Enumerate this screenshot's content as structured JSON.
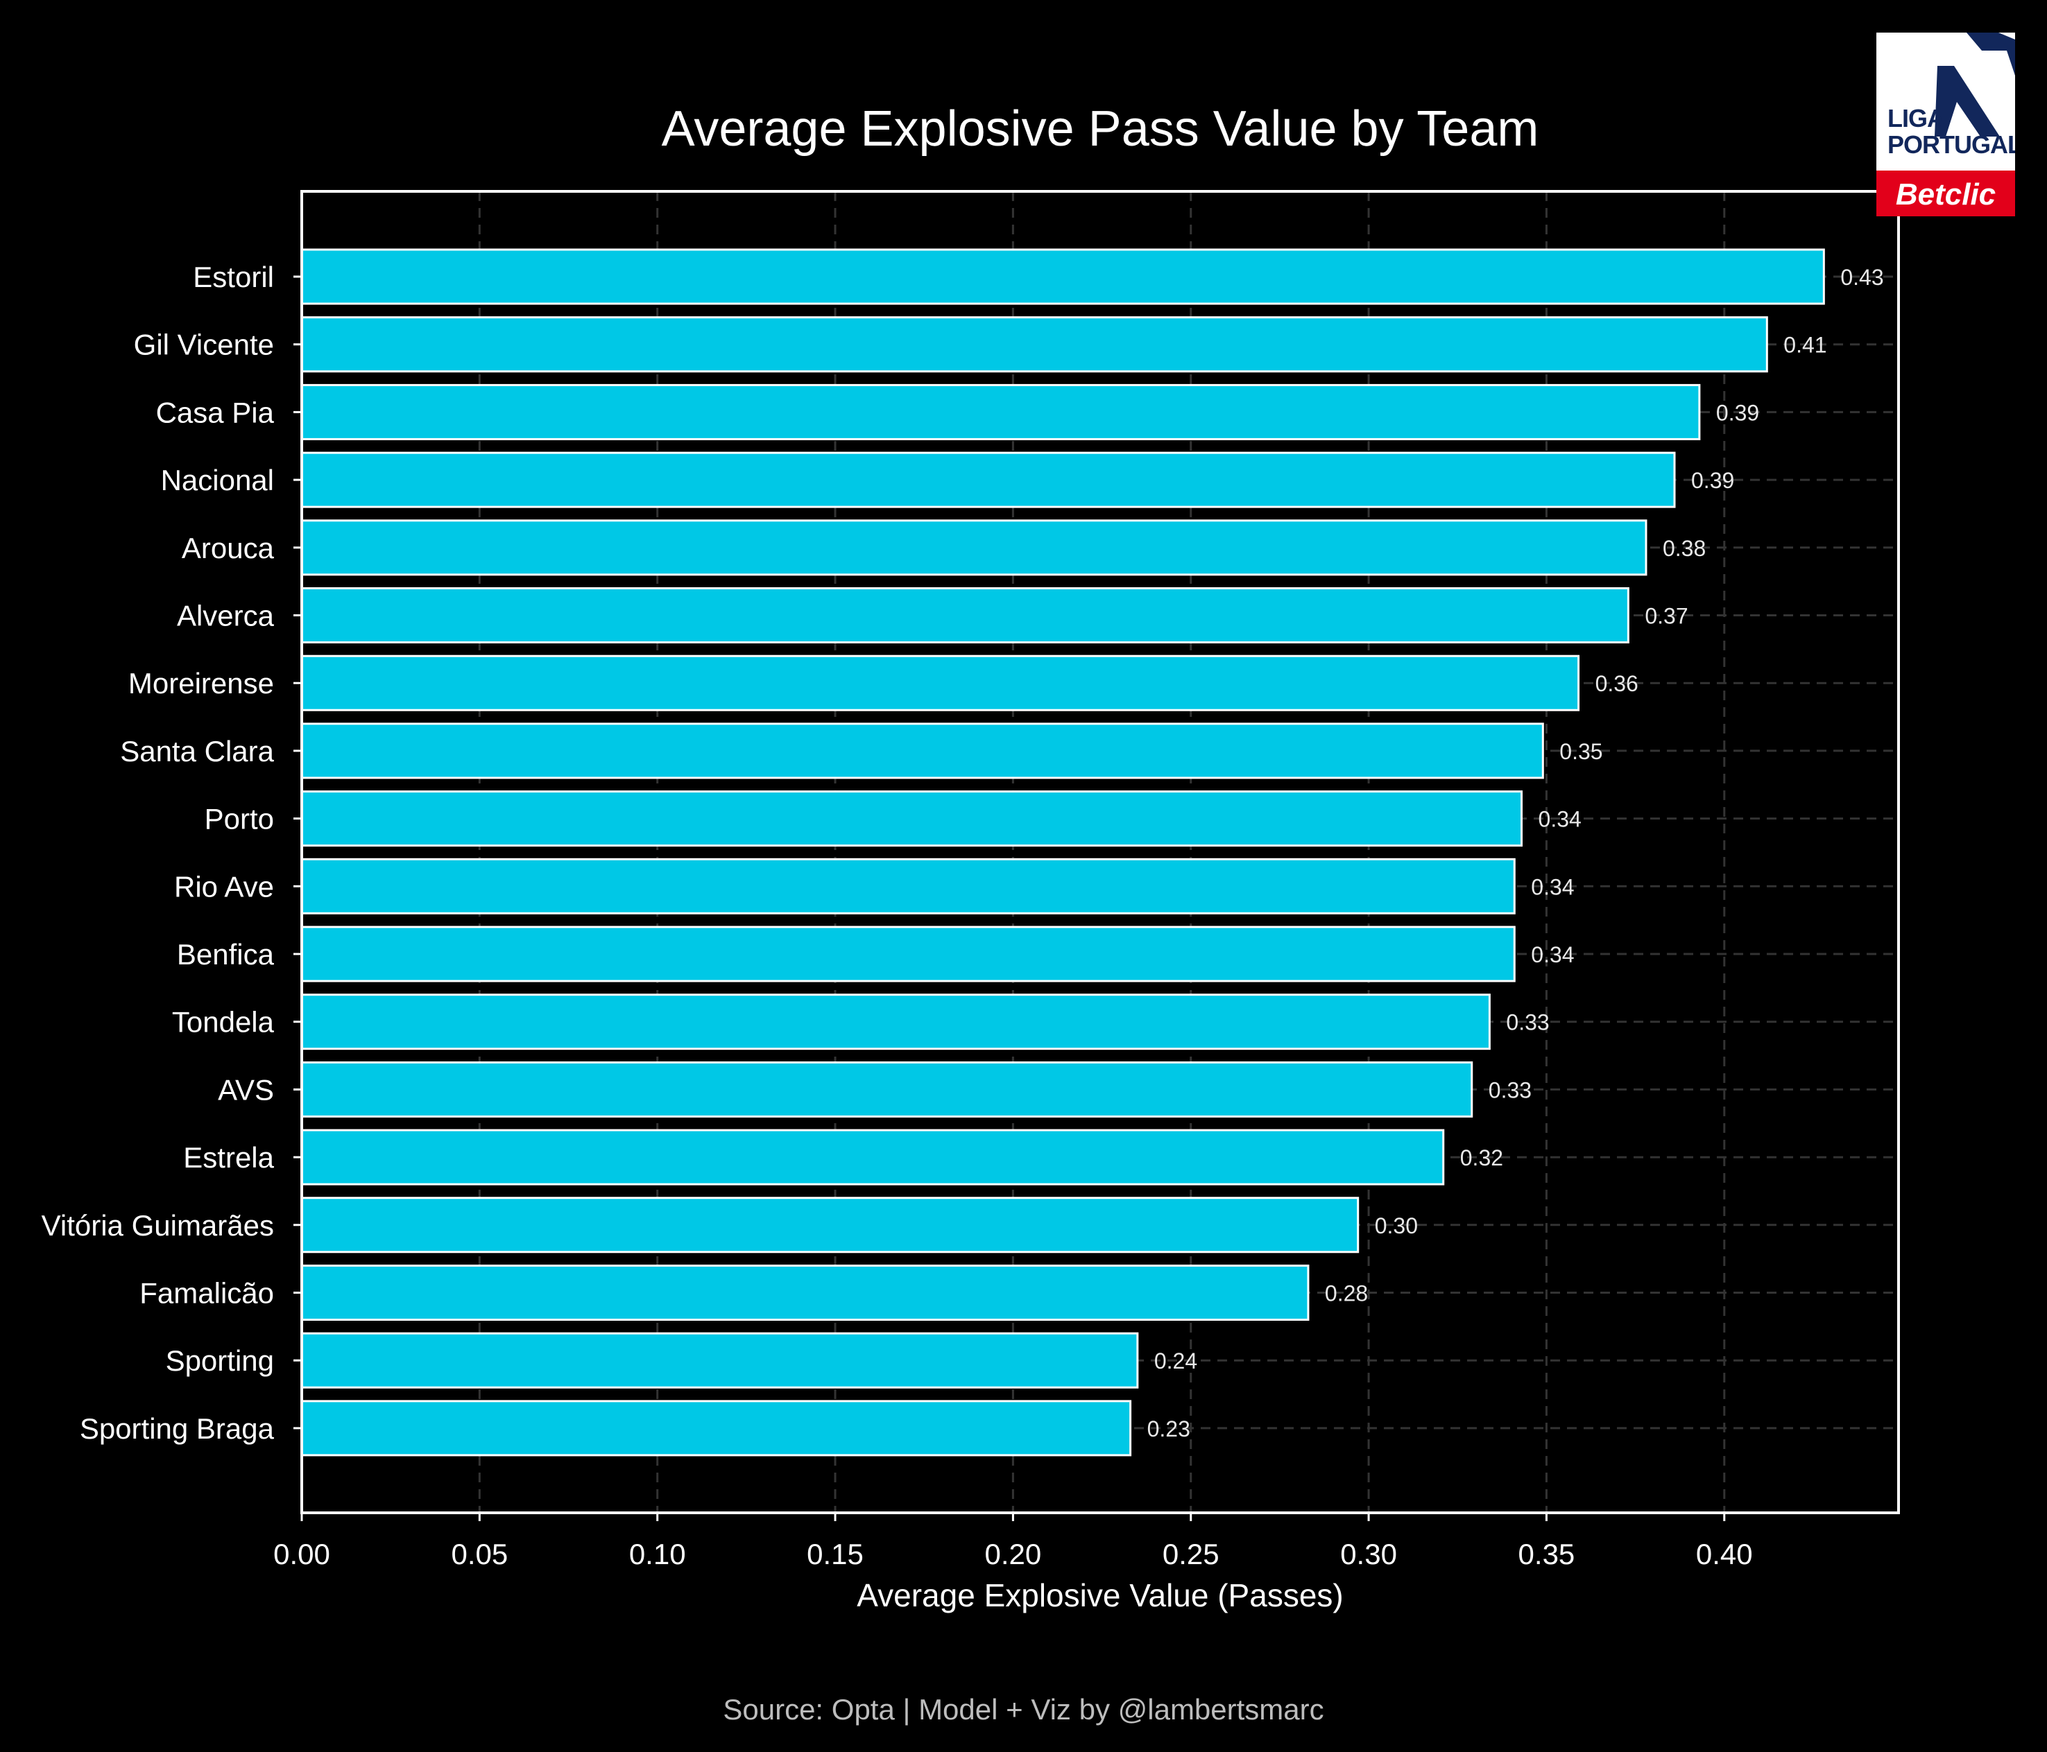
{
  "title": "Average Explosive Pass Value by Team",
  "source": "Source: Opta | Model + Viz by @lambertsmarc",
  "logo": {
    "wordmark_line1": "LIGA",
    "wordmark_line2": "PORTUGAL",
    "sponsor": "Betclic",
    "colors": {
      "navy": "#12275b",
      "red": "#e2001a"
    }
  },
  "colors": {
    "background": "#000000",
    "bar": "#00c8e6",
    "bar_edge": "#ffffff",
    "text": "#ffffff",
    "grid": "#333333",
    "source_text": "#bdbdbd"
  },
  "chart_data": {
    "type": "bar",
    "orientation": "horizontal",
    "title": "Average Explosive Pass Value by Team",
    "xlabel": "Average Explosive Value (Passes)",
    "ylabel": "",
    "xlim": [
      0,
      0.449
    ],
    "xticks": [
      0.0,
      0.05,
      0.1,
      0.15,
      0.2,
      0.25,
      0.3,
      0.35,
      0.4
    ],
    "xtick_labels": [
      "0.00",
      "0.05",
      "0.10",
      "0.15",
      "0.20",
      "0.25",
      "0.30",
      "0.35",
      "0.40"
    ],
    "grid": true,
    "categories": [
      "Estoril",
      "Gil Vicente",
      "Casa Pia",
      "Nacional",
      "Arouca",
      "Alverca",
      "Moreirense",
      "Santa Clara",
      "Porto",
      "Rio Ave",
      "Benfica",
      "Tondela",
      "AVS",
      "Estrela",
      "Vitória Guimarães",
      "Famalicão",
      "Sporting",
      "Sporting Braga"
    ],
    "values": [
      0.428,
      0.412,
      0.393,
      0.386,
      0.378,
      0.373,
      0.359,
      0.349,
      0.343,
      0.341,
      0.341,
      0.334,
      0.329,
      0.321,
      0.297,
      0.283,
      0.235,
      0.233
    ],
    "value_labels": [
      "0.43",
      "0.41",
      "0.39",
      "0.39",
      "0.38",
      "0.37",
      "0.36",
      "0.35",
      "0.34",
      "0.34",
      "0.34",
      "0.33",
      "0.33",
      "0.32",
      "0.30",
      "0.28",
      "0.24",
      "0.23"
    ]
  }
}
